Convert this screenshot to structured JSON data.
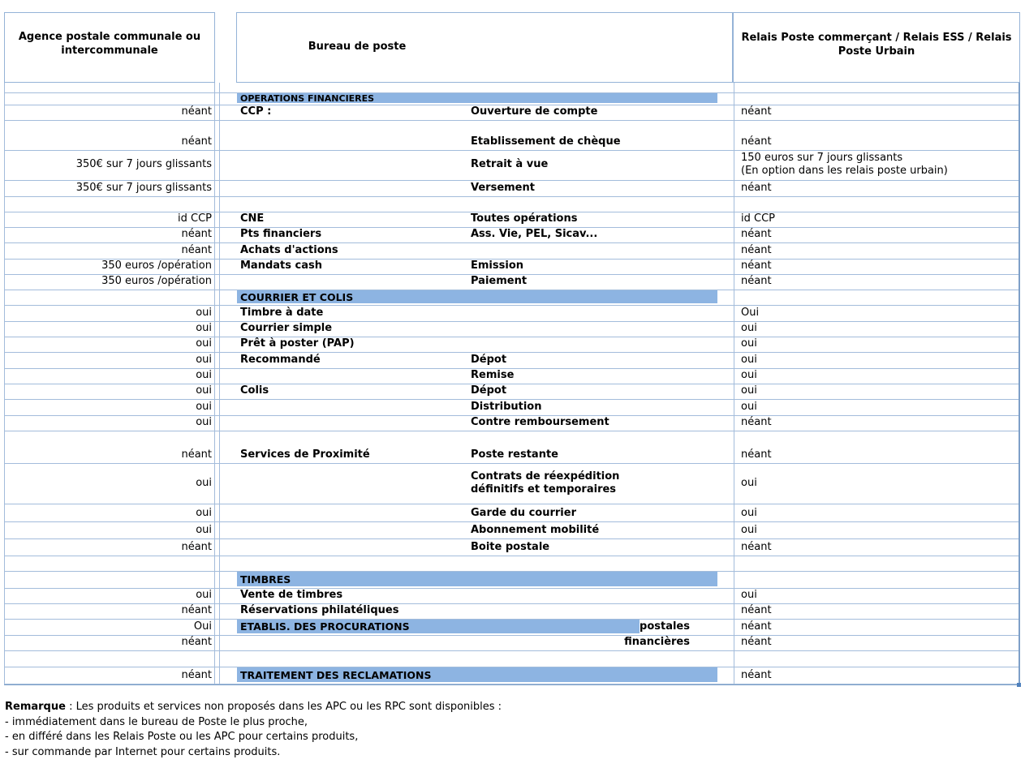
{
  "header": {
    "col_apc": "Agence postale communale ou intercommunale",
    "col_bureau": "Bureau de poste",
    "col_relais": "Relais Poste commerçant / Relais ESS / Relais Poste Urbain"
  },
  "colors": {
    "section_bar": "#8DB4E2",
    "grid_border": "#A3BCDB"
  },
  "rows": [
    {
      "hpx": 13,
      "gap": true
    },
    {
      "hpx": 15,
      "bar": "OPERATIONS FINANCIERES",
      "barStyle": "small"
    },
    {
      "hpx": 19,
      "a": "néant",
      "c": "CCP :",
      "d": "Ouverture de compte",
      "h": "néant"
    },
    {
      "hpx": 37,
      "a": "néant",
      "d": "Etablissement de chèque",
      "h": "néant"
    },
    {
      "hpx": 37,
      "a": "350€ sur 7 jours glissants",
      "d": "Retrait à vue",
      "h": "150 euros sur 7 jours glissants\n(En option dans les relais poste urbain)",
      "valign": "middle"
    },
    {
      "hpx": 20,
      "a": "350€ sur 7 jours glissants",
      "d": "Versement",
      "h": "néant"
    },
    {
      "hpx": 19,
      "gap": true
    },
    {
      "hpx": 19,
      "a": "id CCP",
      "c": "CNE",
      "d": "Toutes opérations",
      "h": "id CCP"
    },
    {
      "hpx": 19,
      "a": "néant",
      "c": "Pts financiers",
      "d": "Ass. Vie, PEL, Sicav...",
      "h": "néant"
    },
    {
      "hpx": 20,
      "a": "néant",
      "c": "Achats d'actions",
      "h": "néant"
    },
    {
      "hpx": 19,
      "a": "350 euros /opération",
      "c": "Mandats cash",
      "d": "Emission",
      "h": "néant"
    },
    {
      "hpx": 19,
      "a": "350 euros /opération",
      "d": "Paiement",
      "h": "néant"
    },
    {
      "hpx": 19,
      "bar": "COURRIER ET COLIS"
    },
    {
      "hpx": 20,
      "a": "oui",
      "c": "Timbre à date",
      "h": "Oui"
    },
    {
      "hpx": 19,
      "a": "oui",
      "c": "Courrier simple",
      "h": "oui"
    },
    {
      "hpx": 19,
      "a": "oui",
      "c": "Prêt à poster (PAP)",
      "h": "oui"
    },
    {
      "hpx": 20,
      "a": "oui",
      "c": "Recommandé",
      "d": "Dépot",
      "h": "oui"
    },
    {
      "hpx": 19,
      "a": "oui",
      "d": "Remise",
      "h": "oui"
    },
    {
      "hpx": 19,
      "a": "oui",
      "c": "Colis",
      "d": "Dépot",
      "h": "oui"
    },
    {
      "hpx": 20,
      "a": "oui",
      "d": "Distribution",
      "h": "oui"
    },
    {
      "hpx": 19,
      "a": "oui",
      "d": "Contre remboursement",
      "h": "néant"
    },
    {
      "hpx": 40,
      "a": "néant",
      "c": "Services de Proximité",
      "d": "Poste restante",
      "h": "néant"
    },
    {
      "hpx": 50,
      "a": "oui",
      "d": "Contrats de réexpédition\ndéfinitifs et temporaires",
      "h": "oui",
      "valign": "middle"
    },
    {
      "hpx": 22,
      "a": "oui",
      "d": "Garde du courrier",
      "h": "oui"
    },
    {
      "hpx": 21,
      "a": "oui",
      "d": "Abonnement mobilité",
      "h": "oui"
    },
    {
      "hpx": 21,
      "a": "néant",
      "d": "Boite postale",
      "h": "néant"
    },
    {
      "hpx": 19,
      "gap": true
    },
    {
      "hpx": 21,
      "bar": "TIMBRES"
    },
    {
      "hpx": 19,
      "a": "oui",
      "c": "Vente de timbres",
      "h": "oui"
    },
    {
      "hpx": 19,
      "a": "néant",
      "c": "Réservations philatéliques",
      "h": "néant"
    },
    {
      "hpx": 20,
      "a": "Oui",
      "bar": "ETABLIS. DES PROCURATIONS",
      "barStyle": "short",
      "e": "postales",
      "h": "néant"
    },
    {
      "hpx": 19,
      "a": "néant",
      "e": "financières",
      "h": "néant"
    },
    {
      "hpx": 20,
      "gap": true
    },
    {
      "hpx": 21,
      "a": "néant",
      "bar": "TRAITEMENT DES RECLAMATIONS",
      "h": "néant"
    }
  ],
  "footer": {
    "title": "Remarque",
    "intro": " :  Les produits et services non proposés dans les APC ou les RPC sont disponibles :",
    "lines": [
      " - immédiatement dans le bureau de Poste le plus proche,",
      " - en différé dans les Relais Poste ou les APC pour certains produits,",
      " - sur commande par Internet pour certains produits."
    ]
  }
}
